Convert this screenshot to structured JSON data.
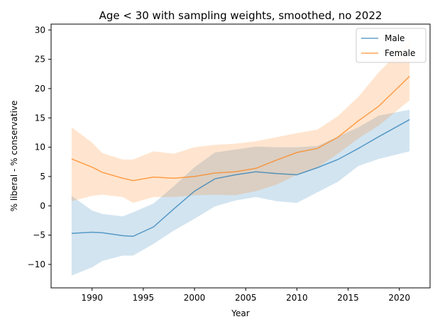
{
  "chart_data": {
    "type": "line",
    "title": "Age < 30 with sampling weights, smoothed, no 2022",
    "xlabel": "Year",
    "ylabel": "% liberal - % conservative",
    "xlim": [
      1986,
      2023
    ],
    "ylim": [
      -14,
      31
    ],
    "xticks": [
      1990,
      1995,
      2000,
      2005,
      2010,
      2015,
      2020
    ],
    "yticks": [
      -10,
      -5,
      0,
      5,
      10,
      15,
      20,
      25,
      30
    ],
    "grid": false,
    "legend_position": "top-right",
    "series": [
      {
        "name": "Male",
        "color": "#1f77b4",
        "x": [
          1988,
          1990,
          1991,
          1993,
          1994,
          1996,
          1998,
          2000,
          2002,
          2004,
          2006,
          2008,
          2010,
          2012,
          2014,
          2016,
          2018,
          2021
        ],
        "values": [
          -4.7,
          -4.5,
          -4.6,
          -5.1,
          -5.2,
          -3.6,
          -0.5,
          2.5,
          4.6,
          5.3,
          5.8,
          5.5,
          5.3,
          6.5,
          7.9,
          9.8,
          11.8,
          14.7
        ],
        "lower": [
          -11.9,
          -10.5,
          -9.4,
          -8.5,
          -8.5,
          -6.5,
          -4.2,
          -2.2,
          -0.1,
          0.9,
          1.5,
          0.8,
          0.5,
          2.3,
          4.1,
          6.8,
          8.0,
          9.3
        ],
        "upper": [
          1.7,
          -0.8,
          -1.4,
          -1.8,
          -1.1,
          0.4,
          3.4,
          6.6,
          9.1,
          9.6,
          10.1,
          10.0,
          10.0,
          10.2,
          11.8,
          13.4,
          15.4,
          16.4
        ]
      },
      {
        "name": "Female",
        "color": "#ff7f0e",
        "x": [
          1988,
          1990,
          1991,
          1993,
          1994,
          1996,
          1998,
          2000,
          2002,
          2004,
          2006,
          2008,
          2010,
          2012,
          2014,
          2016,
          2018,
          2021
        ],
        "values": [
          8.0,
          6.6,
          5.7,
          4.7,
          4.3,
          4.9,
          4.7,
          5.0,
          5.6,
          5.8,
          6.4,
          7.8,
          9.1,
          9.8,
          11.7,
          14.5,
          17.0,
          22.1
        ],
        "lower": [
          0.8,
          1.7,
          1.9,
          1.5,
          0.5,
          1.5,
          1.5,
          1.8,
          1.9,
          1.8,
          2.5,
          3.6,
          5.3,
          6.5,
          8.9,
          11.5,
          13.7,
          18.0
        ],
        "upper": [
          13.4,
          10.8,
          9.0,
          7.9,
          7.9,
          9.3,
          8.9,
          10.0,
          10.4,
          10.6,
          11.0,
          11.7,
          12.4,
          13.0,
          15.3,
          18.6,
          22.8,
          28.1
        ]
      }
    ]
  }
}
